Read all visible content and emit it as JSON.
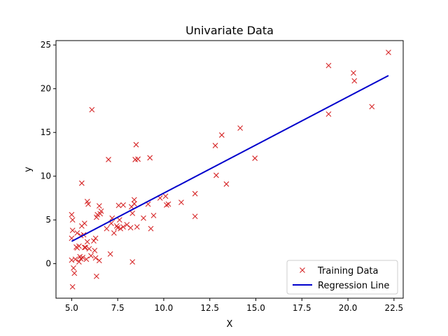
{
  "chart_data": {
    "type": "scatter",
    "title": "Univariate Data",
    "xlabel": "X",
    "ylabel": "y",
    "xlim": [
      4.15,
      23.0
    ],
    "ylim": [
      -3.95,
      25.5
    ],
    "xticks": [
      {
        "value": 5.0,
        "label": "5.0"
      },
      {
        "value": 7.5,
        "label": "7.5"
      },
      {
        "value": 10.0,
        "label": "10.0"
      },
      {
        "value": 12.5,
        "label": "12.5"
      },
      {
        "value": 15.0,
        "label": "15.0"
      },
      {
        "value": 17.5,
        "label": "17.5"
      },
      {
        "value": 20.0,
        "label": "20.0"
      },
      {
        "value": 22.5,
        "label": "22.5"
      }
    ],
    "yticks": [
      {
        "value": 0,
        "label": "0"
      },
      {
        "value": 5,
        "label": "5"
      },
      {
        "value": 10,
        "label": "10"
      },
      {
        "value": 15,
        "label": "15"
      },
      {
        "value": 20,
        "label": "20"
      },
      {
        "value": 25,
        "label": "25"
      }
    ],
    "grid": false,
    "legend_position": "lower-right",
    "series": [
      {
        "name": "Training Data",
        "kind": "scatter",
        "marker": "x",
        "color": "#d62728",
        "points": [
          [
            5.05,
            -2.65
          ],
          [
            5.1,
            -0.5
          ],
          [
            5.15,
            -1.1
          ],
          [
            5.0,
            0.4
          ],
          [
            5.2,
            0.5
          ],
          [
            5.25,
            1.9
          ],
          [
            5.3,
            1.8
          ],
          [
            5.0,
            2.9
          ],
          [
            5.05,
            3.8
          ],
          [
            5.0,
            5.6
          ],
          [
            5.05,
            5.0
          ],
          [
            5.3,
            3.5
          ],
          [
            5.4,
            2.0
          ],
          [
            5.4,
            0.2
          ],
          [
            5.45,
            0.8
          ],
          [
            5.5,
            0.55
          ],
          [
            5.5,
            3.2
          ],
          [
            5.55,
            4.3
          ],
          [
            5.6,
            0.7
          ],
          [
            5.65,
            3.3
          ],
          [
            5.7,
            4.6
          ],
          [
            5.7,
            1.85
          ],
          [
            5.75,
            1.85
          ],
          [
            5.8,
            0.5
          ],
          [
            5.85,
            2.5
          ],
          [
            5.85,
            7.1
          ],
          [
            5.9,
            6.8
          ],
          [
            5.95,
            1.7
          ],
          [
            6.05,
            0.9
          ],
          [
            6.1,
            17.6
          ],
          [
            6.2,
            2.6
          ],
          [
            6.25,
            1.5
          ],
          [
            6.3,
            0.65
          ],
          [
            6.35,
            -1.45
          ],
          [
            6.35,
            5.3
          ],
          [
            6.4,
            5.6
          ],
          [
            6.5,
            6.6
          ],
          [
            6.55,
            5.7
          ],
          [
            6.5,
            0.35
          ],
          [
            6.6,
            6.0
          ],
          [
            5.55,
            9.2
          ],
          [
            6.3,
            2.9
          ],
          [
            6.9,
            4.0
          ],
          [
            7.0,
            11.9
          ],
          [
            7.1,
            1.1
          ],
          [
            7.15,
            4.6
          ],
          [
            7.2,
            5.2
          ],
          [
            7.3,
            3.5
          ],
          [
            7.45,
            4.3
          ],
          [
            7.5,
            4.1
          ],
          [
            7.55,
            6.65
          ],
          [
            7.6,
            5.0
          ],
          [
            7.65,
            4.0
          ],
          [
            7.8,
            6.7
          ],
          [
            7.8,
            4.2
          ],
          [
            8.0,
            4.45
          ],
          [
            8.2,
            4.1
          ],
          [
            8.25,
            6.5
          ],
          [
            8.3,
            0.2
          ],
          [
            8.3,
            5.75
          ],
          [
            8.4,
            6.85
          ],
          [
            8.4,
            7.3
          ],
          [
            8.45,
            11.9
          ],
          [
            8.5,
            13.6
          ],
          [
            8.6,
            11.95
          ],
          [
            8.55,
            4.2
          ],
          [
            8.9,
            5.2
          ],
          [
            9.15,
            6.8
          ],
          [
            9.25,
            12.1
          ],
          [
            9.3,
            4.0
          ],
          [
            9.45,
            5.5
          ],
          [
            9.8,
            7.5
          ],
          [
            10.1,
            7.7
          ],
          [
            10.15,
            6.7
          ],
          [
            10.25,
            6.8
          ],
          [
            10.95,
            7.0
          ],
          [
            11.7,
            8.0
          ],
          [
            11.7,
            5.4
          ],
          [
            12.8,
            13.5
          ],
          [
            12.85,
            10.1
          ],
          [
            13.15,
            14.7
          ],
          [
            13.4,
            9.1
          ],
          [
            14.15,
            15.5
          ],
          [
            14.95,
            12.05
          ],
          [
            18.95,
            22.65
          ],
          [
            18.95,
            17.1
          ],
          [
            20.3,
            21.8
          ],
          [
            20.35,
            20.9
          ],
          [
            21.3,
            17.95
          ],
          [
            22.2,
            24.15
          ]
        ]
      },
      {
        "name": "Regression Line",
        "kind": "line",
        "color": "#0000cc",
        "points": [
          [
            5.0,
            2.55
          ],
          [
            22.2,
            21.5
          ]
        ]
      }
    ]
  }
}
